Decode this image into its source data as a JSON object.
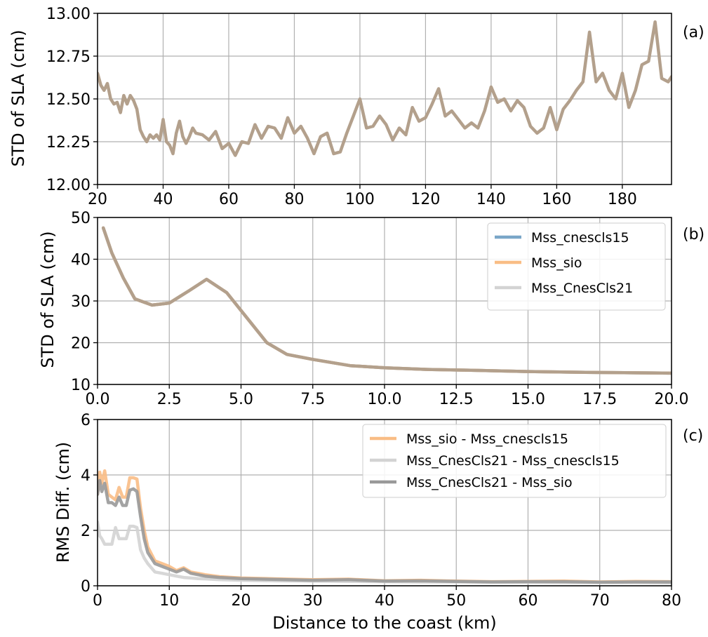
{
  "panels": [
    {
      "label": "(a)",
      "ylabel": "STD of SLA (cm)",
      "xlabel": ""
    },
    {
      "label": "(b)",
      "ylabel": "STD of SLA (cm)",
      "xlabel": ""
    },
    {
      "label": "(c)",
      "ylabel": "RMS Diff. (cm)",
      "xlabel": "Distance to the coast (km)"
    }
  ],
  "chart_data": [
    {
      "type": "line",
      "title": "",
      "panel_label": "(a)",
      "xlabel": "",
      "ylabel": "STD of SLA (cm)",
      "xlim": [
        20,
        195
      ],
      "ylim": [
        12.0,
        13.0
      ],
      "xticks": [
        20,
        40,
        60,
        80,
        100,
        120,
        140,
        160,
        180
      ],
      "xtick_labels": [
        "20",
        "40",
        "60",
        "80",
        "100",
        "120",
        "140",
        "160",
        "180"
      ],
      "yticks": [
        12.0,
        12.25,
        12.5,
        12.75,
        13.0
      ],
      "ytick_labels": [
        "12.00",
        "12.25",
        "12.50",
        "12.75",
        "13.00"
      ],
      "grid": true,
      "legend": null,
      "series": [
        {
          "color": "#b3a08c",
          "x": [
            20,
            21,
            22,
            23,
            24,
            25,
            26,
            27,
            28,
            29,
            30,
            31,
            32,
            33,
            34,
            35,
            36,
            37,
            38,
            39,
            40,
            41,
            42,
            43,
            44,
            45,
            46,
            47,
            48,
            49,
            50,
            52,
            54,
            56,
            58,
            60,
            62,
            64,
            66,
            68,
            70,
            72,
            74,
            76,
            78,
            80,
            82,
            84,
            86,
            88,
            90,
            92,
            94,
            96,
            98,
            100,
            102,
            104,
            106,
            108,
            110,
            112,
            114,
            116,
            118,
            120,
            122,
            124,
            126,
            128,
            130,
            132,
            134,
            136,
            138,
            140,
            142,
            144,
            146,
            148,
            150,
            152,
            154,
            156,
            158,
            160,
            162,
            164,
            166,
            168,
            170,
            172,
            174,
            176,
            178,
            180,
            182,
            184,
            186,
            188,
            190,
            192,
            194,
            195
          ],
          "y": [
            12.65,
            12.58,
            12.55,
            12.59,
            12.5,
            12.47,
            12.48,
            12.42,
            12.52,
            12.47,
            12.52,
            12.49,
            12.44,
            12.32,
            12.28,
            12.25,
            12.29,
            12.27,
            12.29,
            12.26,
            12.38,
            12.25,
            12.23,
            12.18,
            12.3,
            12.37,
            12.28,
            12.24,
            12.28,
            12.33,
            12.3,
            12.29,
            12.26,
            12.31,
            12.21,
            12.24,
            12.17,
            12.25,
            12.24,
            12.35,
            12.27,
            12.34,
            12.33,
            12.27,
            12.39,
            12.3,
            12.34,
            12.27,
            12.18,
            12.28,
            12.3,
            12.18,
            12.19,
            12.3,
            12.4,
            12.5,
            12.33,
            12.34,
            12.4,
            12.35,
            12.26,
            12.33,
            12.29,
            12.45,
            12.37,
            12.39,
            12.47,
            12.56,
            12.4,
            12.43,
            12.38,
            12.33,
            12.36,
            12.33,
            12.43,
            12.57,
            12.48,
            12.5,
            12.43,
            12.49,
            12.45,
            12.34,
            12.3,
            12.33,
            12.45,
            12.32,
            12.44,
            12.49,
            12.55,
            12.6,
            12.89,
            12.6,
            12.65,
            12.55,
            12.5,
            12.65,
            12.45,
            12.55,
            12.7,
            12.72,
            12.95,
            12.62,
            12.6,
            12.63
          ]
        }
      ]
    },
    {
      "type": "line",
      "title": "",
      "panel_label": "(b)",
      "xlabel": "",
      "ylabel": "STD of SLA (cm)",
      "xlim": [
        0,
        20
      ],
      "ylim": [
        10,
        50
      ],
      "xticks": [
        0,
        2.5,
        5,
        7.5,
        10,
        12.5,
        15,
        17.5,
        20
      ],
      "xtick_labels": [
        "0.0",
        "2.5",
        "5.0",
        "7.5",
        "10.0",
        "12.5",
        "15.0",
        "17.5",
        "20.0"
      ],
      "yticks": [
        10,
        20,
        30,
        40,
        50
      ],
      "ytick_labels": [
        "10",
        "20",
        "30",
        "40",
        "50"
      ],
      "grid": true,
      "legend": "top-right",
      "series": [
        {
          "name": "Mss_cnescls15",
          "color": "#7aa6c8",
          "x": [
            0.2,
            0.5,
            0.9,
            1.3,
            1.9,
            2.5,
            3.2,
            3.8,
            4.5,
            5.2,
            5.9,
            6.6,
            7.5,
            8.8,
            10,
            11.5,
            13,
            15,
            17,
            20
          ],
          "y": [
            47.5,
            41.5,
            35.5,
            30.5,
            29,
            29.5,
            32.5,
            35.2,
            32,
            26,
            20,
            17.2,
            16,
            14.5,
            14,
            13.6,
            13.4,
            13.1,
            12.9,
            12.7
          ]
        },
        {
          "name": "Mss_sio",
          "color": "#f9bd85",
          "x": [
            0.2,
            0.5,
            0.9,
            1.3,
            1.9,
            2.5,
            3.2,
            3.8,
            4.5,
            5.2,
            5.9,
            6.6,
            7.5,
            8.8,
            10,
            11.5,
            13,
            15,
            17,
            20
          ],
          "y": [
            47.5,
            41.5,
            35.5,
            30.5,
            29,
            29.5,
            32.5,
            35.2,
            32,
            26,
            20,
            17.2,
            16,
            14.5,
            14,
            13.6,
            13.4,
            13.1,
            12.9,
            12.7
          ]
        },
        {
          "name": "Mss_CnesCls21",
          "color": "#b3a08c",
          "legend_color": "#d3d3d3",
          "x": [
            0.2,
            0.5,
            0.9,
            1.3,
            1.9,
            2.5,
            3.2,
            3.8,
            4.5,
            5.2,
            5.9,
            6.6,
            7.5,
            8.8,
            10,
            11.5,
            13,
            15,
            17,
            20
          ],
          "y": [
            47.5,
            41.5,
            35.5,
            30.5,
            29,
            29.5,
            32.5,
            35.2,
            32,
            26,
            20,
            17.2,
            16,
            14.5,
            14,
            13.6,
            13.4,
            13.1,
            12.9,
            12.7
          ]
        }
      ]
    },
    {
      "type": "line",
      "title": "",
      "panel_label": "(c)",
      "xlabel": "Distance to the coast (km)",
      "ylabel": "RMS Diff. (cm)",
      "xlim": [
        0,
        80
      ],
      "ylim": [
        0,
        6
      ],
      "xticks": [
        0,
        10,
        20,
        30,
        40,
        50,
        60,
        70,
        80
      ],
      "xtick_labels": [
        "0",
        "10",
        "20",
        "30",
        "40",
        "50",
        "60",
        "70",
        "80"
      ],
      "yticks": [
        0,
        2,
        4,
        6
      ],
      "ytick_labels": [
        "0",
        "2",
        "4",
        "6"
      ],
      "grid": true,
      "legend": "top-right",
      "series": [
        {
          "name": "Mss_sio - Mss_cnescls15",
          "color": "#f9bd85",
          "x": [
            0,
            0.3,
            0.6,
            1,
            1.5,
            2,
            2.5,
            3,
            3.5,
            4,
            4.5,
            5,
            5.5,
            6,
            6.5,
            7,
            8,
            9,
            10,
            11,
            12,
            13,
            14,
            15,
            17,
            20,
            25,
            30,
            35,
            40,
            45,
            50,
            55,
            60,
            65,
            70,
            75,
            80
          ],
          "y": [
            3.3,
            4.1,
            3.7,
            4.15,
            3.3,
            3.2,
            3.1,
            3.55,
            3.2,
            3.2,
            3.9,
            3.9,
            3.85,
            2.8,
            2.0,
            1.4,
            0.9,
            0.8,
            0.7,
            0.55,
            0.65,
            0.5,
            0.45,
            0.4,
            0.33,
            0.28,
            0.25,
            0.22,
            0.24,
            0.18,
            0.2,
            0.17,
            0.15,
            0.16,
            0.17,
            0.14,
            0.16,
            0.15
          ]
        },
        {
          "name": "Mss_CnesCls21 - Mss_cnescls15",
          "color": "#d3d3d3",
          "x": [
            0,
            0.3,
            0.6,
            1,
            1.5,
            2,
            2.5,
            3,
            3.5,
            4,
            4.5,
            5,
            5.5,
            6,
            6.5,
            7,
            8,
            9,
            10,
            11,
            12,
            13,
            14,
            15,
            17,
            20,
            25,
            30,
            35,
            40,
            45,
            50,
            55,
            60,
            65,
            70,
            75,
            80
          ],
          "y": [
            2.3,
            1.8,
            1.7,
            1.5,
            1.5,
            1.5,
            2.1,
            1.7,
            1.7,
            1.7,
            2.15,
            2.15,
            2.1,
            1.3,
            1.0,
            0.8,
            0.5,
            0.45,
            0.4,
            0.35,
            0.3,
            0.28,
            0.26,
            0.25,
            0.22,
            0.2,
            0.18,
            0.17,
            0.16,
            0.15,
            0.14,
            0.14,
            0.13,
            0.13,
            0.12,
            0.12,
            0.12,
            0.11
          ]
        },
        {
          "name": "Mss_CnesCls21 - Mss_sio",
          "color": "#999999",
          "x": [
            0,
            0.3,
            0.6,
            1,
            1.5,
            2,
            2.5,
            3,
            3.5,
            4,
            4.5,
            5,
            5.5,
            6,
            6.5,
            7,
            8,
            9,
            10,
            11,
            12,
            13,
            14,
            15,
            17,
            20,
            25,
            30,
            35,
            40,
            45,
            50,
            55,
            60,
            65,
            70,
            75,
            80
          ],
          "y": [
            3.3,
            3.8,
            3.4,
            3.7,
            3.0,
            3.0,
            2.9,
            3.2,
            2.9,
            2.9,
            3.45,
            3.5,
            3.4,
            2.5,
            1.7,
            1.2,
            0.8,
            0.7,
            0.6,
            0.5,
            0.6,
            0.45,
            0.4,
            0.35,
            0.3,
            0.26,
            0.23,
            0.2,
            0.22,
            0.17,
            0.18,
            0.16,
            0.14,
            0.15,
            0.15,
            0.13,
            0.14,
            0.14
          ]
        }
      ]
    }
  ]
}
